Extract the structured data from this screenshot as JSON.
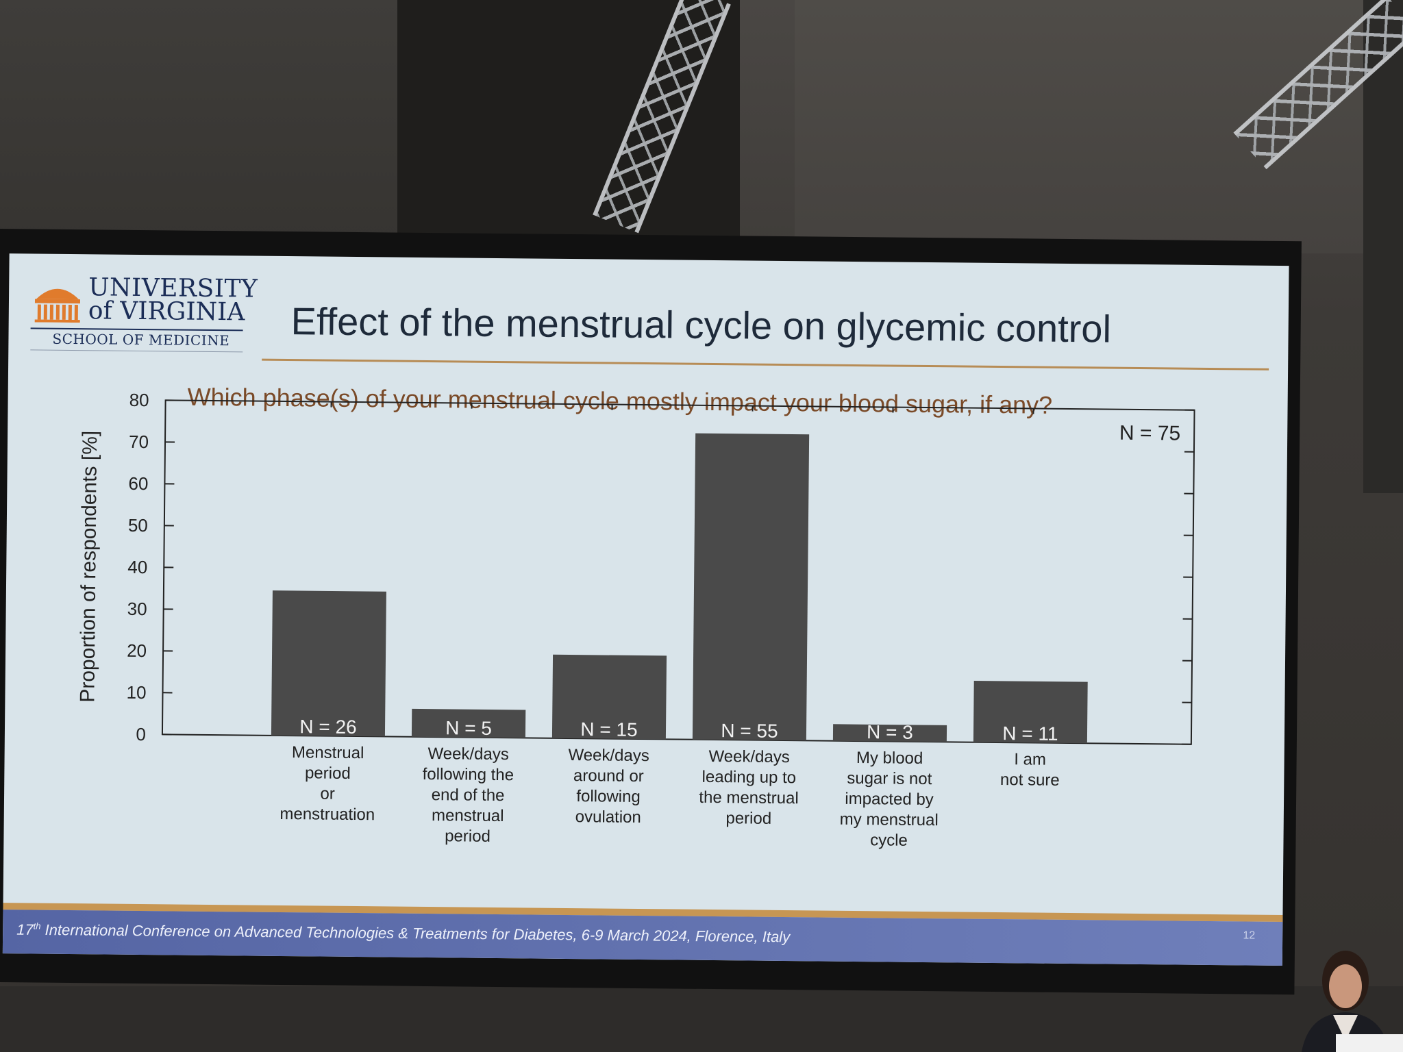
{
  "slide": {
    "logo": {
      "line1": "UNIVERSITY",
      "line2": "of VIRGINIA",
      "line3": "SCHOOL OF MEDICINE"
    },
    "title": "Effect of the menstrual cycle on glycemic control",
    "question": "Which phase(s) of your menstrual cycle mostly impact your blood sugar, if any?",
    "footer": {
      "ordinal": "17",
      "ordinal_suffix": "th",
      "text": " International Conference on Advanced Technologies & Treatments for Diabetes, 6-9 March 2024, Florence, Italy"
    },
    "slide_number": "12"
  },
  "chart_data": {
    "type": "bar",
    "ylabel": "Proportion of respondents [%]",
    "xlabel": "",
    "ylim": [
      0,
      80
    ],
    "yticks": [
      0,
      10,
      20,
      30,
      40,
      50,
      60,
      70,
      80
    ],
    "total_label": "N = 75",
    "categories": [
      [
        "Menstrual",
        "period",
        "or",
        "menstruation"
      ],
      [
        "Week/days",
        "following the",
        "end of the",
        "menstrual",
        "period"
      ],
      [
        "Week/days",
        "around or",
        "following",
        "ovulation"
      ],
      [
        "Week/days",
        "leading up to",
        "the menstrual",
        "period"
      ],
      [
        "My blood",
        "sugar is not",
        "impacted by",
        "my menstrual",
        "cycle"
      ],
      [
        "I am",
        "not sure"
      ]
    ],
    "values": [
      34.7,
      6.7,
      20.0,
      73.3,
      4.0,
      14.7
    ],
    "bar_labels": [
      "N = 26",
      "N = 5",
      "N = 15",
      "N = 55",
      "N = 3",
      "N = 11"
    ],
    "colors": {
      "bar": "#4a4a4a",
      "bar_label": "#f2f2f2",
      "axis": "#222222"
    }
  },
  "colors": {
    "title_rule": "#b78c56",
    "question": "#7a4a28",
    "footer_bar": "#5f6fae",
    "footer_gold": "#c79653",
    "logo": "#1b2d57",
    "logo_orange": "#e07b2c"
  }
}
